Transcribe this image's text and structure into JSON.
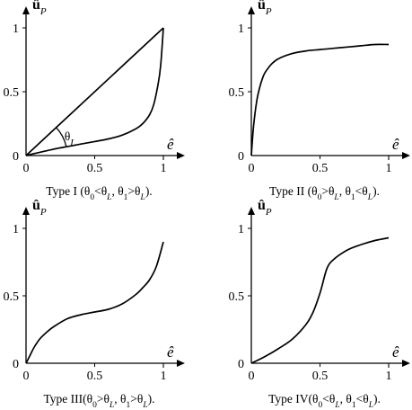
{
  "chart_data": [
    {
      "type": "line",
      "title": "Type I  (θ0<θL, θ1>θL).",
      "xlabel": "ê",
      "ylabel": "ûP",
      "xlim": [
        0,
        1
      ],
      "ylim": [
        0,
        1
      ],
      "x_ticks": [
        "0",
        "0.5",
        "1"
      ],
      "y_ticks": [
        "0",
        "0.5",
        "1"
      ],
      "grid": false,
      "annotation": "θL",
      "series": [
        {
          "x": [
            0,
            1
          ],
          "y": [
            0,
            1
          ]
        },
        {
          "x": [
            0,
            0.1,
            0.2,
            0.3,
            0.4,
            0.5,
            0.6,
            0.7,
            0.8,
            0.85,
            0.9,
            0.93,
            0.96,
            0.98,
            1
          ],
          "y": [
            0,
            0.025,
            0.05,
            0.07,
            0.09,
            0.11,
            0.13,
            0.16,
            0.21,
            0.25,
            0.32,
            0.4,
            0.55,
            0.7,
            1
          ]
        }
      ]
    },
    {
      "type": "line",
      "title": "Type II (θ0>θL, θ1<θL).",
      "xlabel": "ê",
      "ylabel": "ûP",
      "xlim": [
        0,
        1
      ],
      "ylim": [
        0,
        1
      ],
      "x_ticks": [
        "0",
        "0.5",
        "1"
      ],
      "y_ticks": [
        "0",
        "0.5",
        "1"
      ],
      "grid": false,
      "series": [
        {
          "x": [
            0,
            0.01,
            0.02,
            0.04,
            0.06,
            0.08,
            0.1,
            0.15,
            0.2,
            0.3,
            0.4,
            0.5,
            0.6,
            0.7,
            0.8,
            0.9,
            1
          ],
          "y": [
            0,
            0.15,
            0.27,
            0.43,
            0.53,
            0.6,
            0.65,
            0.72,
            0.76,
            0.8,
            0.82,
            0.83,
            0.84,
            0.85,
            0.86,
            0.87,
            0.87
          ]
        }
      ]
    },
    {
      "type": "line",
      "title": "Type III(θ0>θL, θ1>θL).",
      "xlabel": "ê",
      "ylabel": "ûP",
      "xlim": [
        0,
        1
      ],
      "ylim": [
        0,
        1
      ],
      "x_ticks": [
        "0",
        "0.5",
        "1"
      ],
      "y_ticks": [
        "0",
        "0.5",
        "1"
      ],
      "grid": false,
      "series": [
        {
          "x": [
            0,
            0.03,
            0.06,
            0.1,
            0.15,
            0.2,
            0.3,
            0.4,
            0.5,
            0.6,
            0.7,
            0.8,
            0.85,
            0.9,
            0.95,
            1
          ],
          "y": [
            0,
            0.06,
            0.12,
            0.18,
            0.23,
            0.27,
            0.33,
            0.36,
            0.38,
            0.4,
            0.44,
            0.51,
            0.56,
            0.62,
            0.72,
            0.9
          ]
        }
      ]
    },
    {
      "type": "line",
      "title": "Type IV(θ0<θL, θ1<θL).",
      "xlabel": "ê",
      "ylabel": "ûP",
      "xlim": [
        0,
        1
      ],
      "ylim": [
        0,
        1
      ],
      "x_ticks": [
        "0",
        "0.5",
        "1"
      ],
      "y_ticks": [
        "0",
        "0.5",
        "1"
      ],
      "grid": false,
      "series": [
        {
          "x": [
            0,
            0.1,
            0.2,
            0.3,
            0.4,
            0.45,
            0.5,
            0.55,
            0.6,
            0.7,
            0.8,
            0.9,
            1
          ],
          "y": [
            0,
            0.05,
            0.11,
            0.18,
            0.29,
            0.38,
            0.52,
            0.7,
            0.77,
            0.84,
            0.88,
            0.91,
            0.93
          ]
        }
      ]
    }
  ]
}
